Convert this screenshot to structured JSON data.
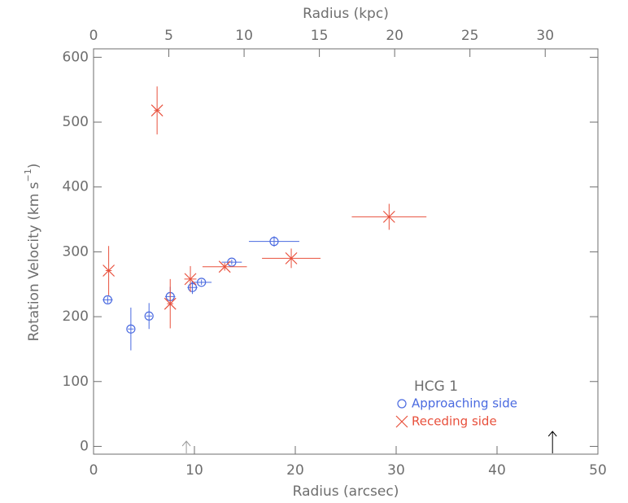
{
  "chart_data": {
    "type": "scatter",
    "xlabel": "Radius (arcsec)",
    "x2label": "Radius (kpc)",
    "ylabel": "Rotation Velocity (km s",
    "ylabel_sup": "−1",
    "ylabel_end": ")",
    "xlim": [
      0,
      50
    ],
    "xticks": [
      0,
      10,
      20,
      30,
      40,
      50
    ],
    "x2lim": [
      0,
      33.5
    ],
    "x2ticks": [
      0,
      5,
      10,
      15,
      20,
      25,
      30
    ],
    "ylim": [
      -12,
      613
    ],
    "yticks": [
      0,
      100,
      200,
      300,
      400,
      500,
      600
    ],
    "legend_title": "HCG 1",
    "series": [
      {
        "name": "Approaching side",
        "marker": "circle",
        "color": "#4a6ae0",
        "x": [
          1.4,
          3.7,
          5.5,
          7.6,
          9.8,
          10.7,
          13.7,
          17.9
        ],
        "values": [
          226,
          181,
          201,
          231,
          245,
          253,
          284,
          316
        ],
        "xerr": [
          0.5,
          0.3,
          0.3,
          0.5,
          0.5,
          1.0,
          1.0,
          2.5
        ],
        "yerr": [
          5,
          33,
          20,
          15,
          10,
          4,
          4,
          8
        ]
      },
      {
        "name": "Receding side",
        "marker": "x",
        "color": "#e8503c",
        "x": [
          1.5,
          6.3,
          7.6,
          9.6,
          13.0,
          19.6,
          29.3
        ],
        "values": [
          271,
          518,
          220,
          258,
          277,
          290,
          354
        ],
        "xerr": [
          0.3,
          0.3,
          0.3,
          0.6,
          2.2,
          2.9,
          3.7
        ],
        "yerr": [
          38,
          37,
          38,
          20,
          6,
          15,
          20
        ]
      }
    ],
    "arrows": [
      {
        "x": 9.2,
        "color": "#999999"
      },
      {
        "x": 45.5,
        "color": "#000000"
      }
    ]
  }
}
